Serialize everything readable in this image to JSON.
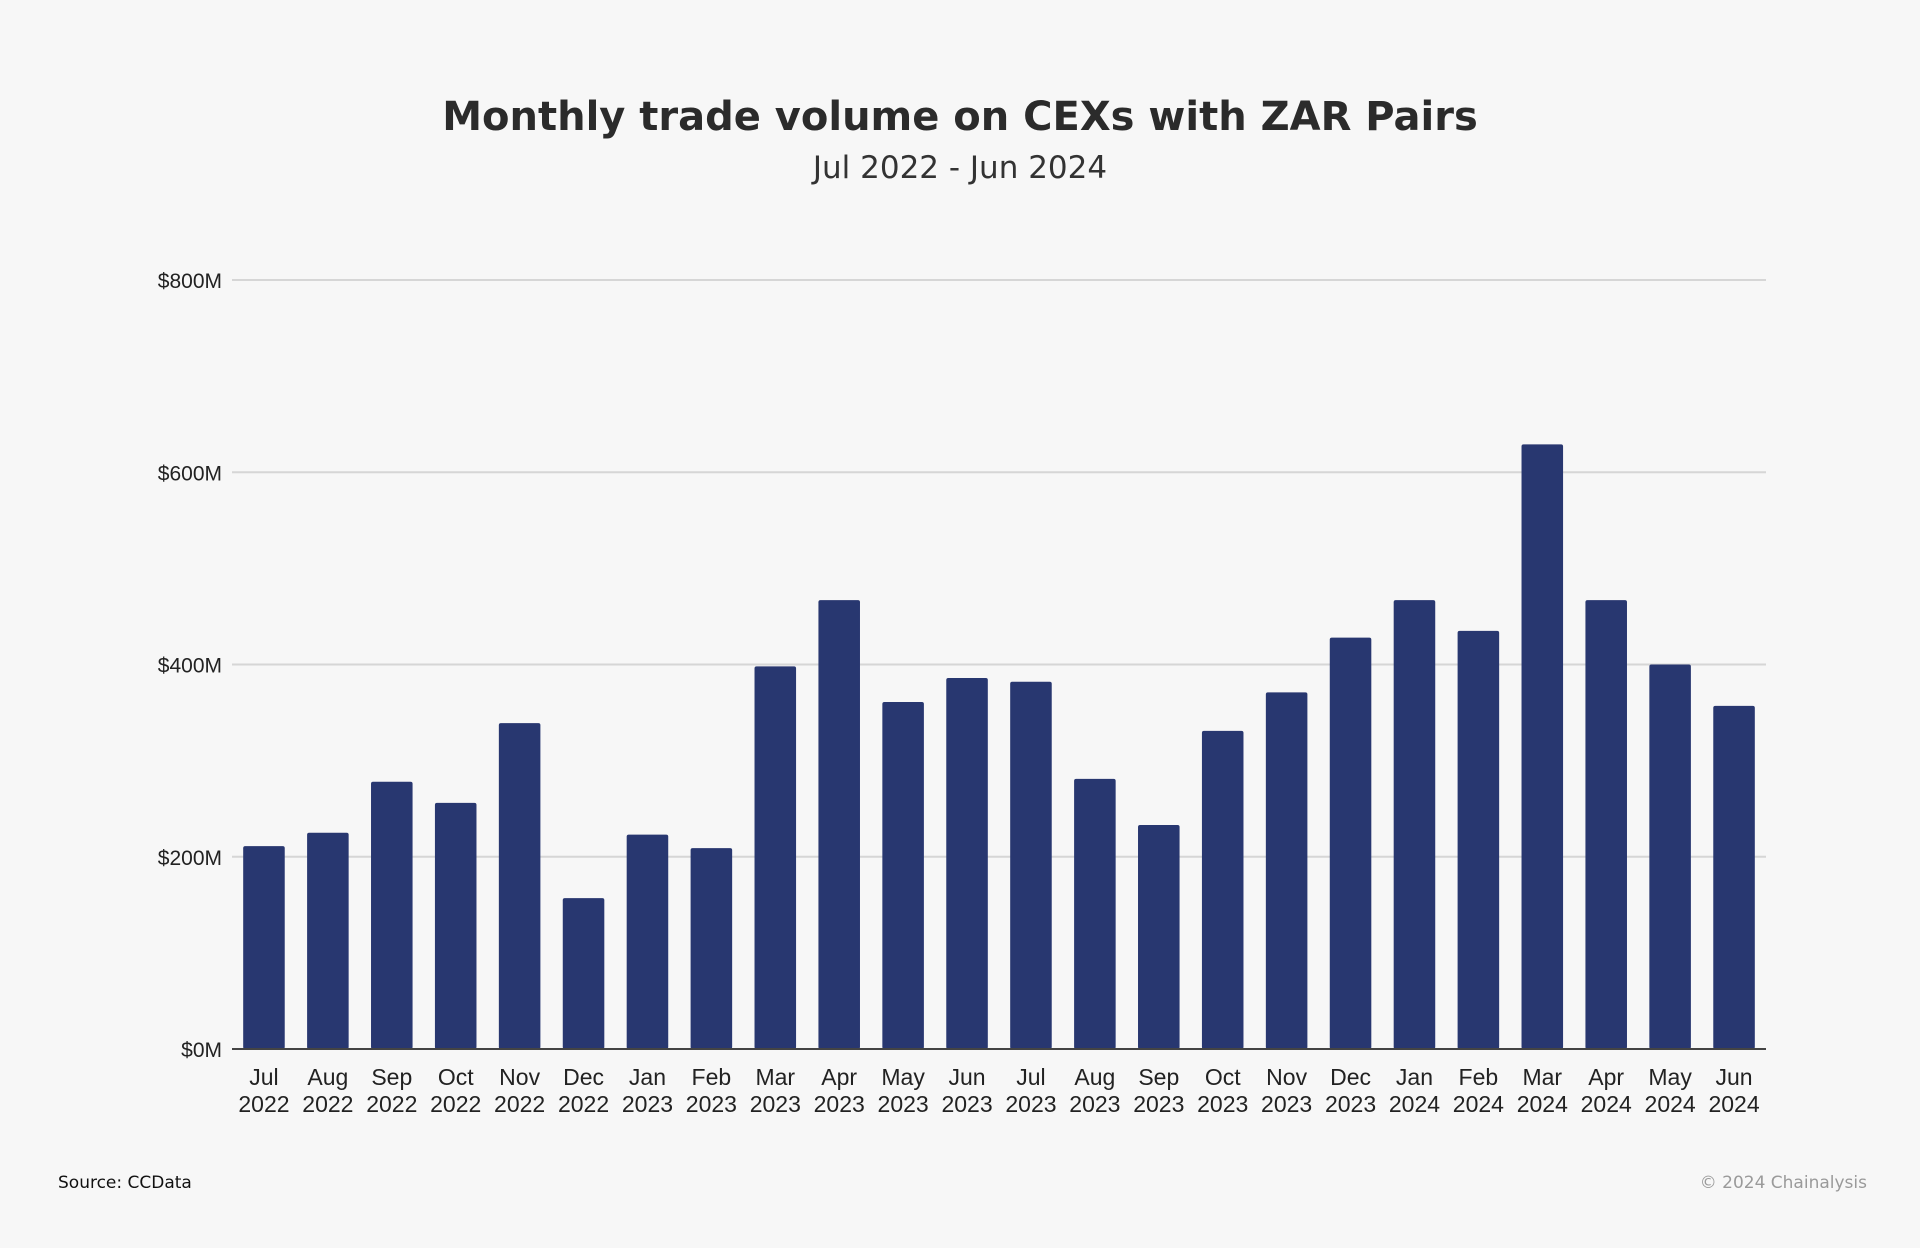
{
  "colors": {
    "background": "#f7f7f7",
    "bar": "#283770",
    "grid": "#d6d6d6",
    "axis": "#444444",
    "text": "#222222"
  },
  "footer": {
    "source": "Source: CCData",
    "copyright": "© 2024 Chainalysis"
  },
  "chart_data": {
    "type": "bar",
    "title": "Monthly trade volume on CEXs with ZAR Pairs",
    "subtitle": "Jul 2022 - Jun 2024",
    "xlabel": "",
    "ylabel": "",
    "ylim": [
      0,
      800
    ],
    "y_unit": "$M",
    "y_ticks": [
      0,
      200,
      400,
      600,
      800
    ],
    "y_tick_labels": [
      "$0M",
      "$200M",
      "$400M",
      "$600M",
      "$800M"
    ],
    "grid": true,
    "legend": "none",
    "categories": [
      [
        "Jul",
        "2022"
      ],
      [
        "Aug",
        "2022"
      ],
      [
        "Sep",
        "2022"
      ],
      [
        "Oct",
        "2022"
      ],
      [
        "Nov",
        "2022"
      ],
      [
        "Dec",
        "2022"
      ],
      [
        "Jan",
        "2023"
      ],
      [
        "Feb",
        "2023"
      ],
      [
        "Mar",
        "2023"
      ],
      [
        "Apr",
        "2023"
      ],
      [
        "May",
        "2023"
      ],
      [
        "Jun",
        "2023"
      ],
      [
        "Jul",
        "2023"
      ],
      [
        "Aug",
        "2023"
      ],
      [
        "Sep",
        "2023"
      ],
      [
        "Oct",
        "2023"
      ],
      [
        "Nov",
        "2023"
      ],
      [
        "Dec",
        "2023"
      ],
      [
        "Jan",
        "2024"
      ],
      [
        "Feb",
        "2024"
      ],
      [
        "Mar",
        "2024"
      ],
      [
        "Apr",
        "2024"
      ],
      [
        "May",
        "2024"
      ],
      [
        "Jun",
        "2024"
      ]
    ],
    "values": [
      211,
      225,
      278,
      256,
      339,
      157,
      223,
      209,
      398,
      467,
      361,
      386,
      382,
      281,
      233,
      331,
      371,
      428,
      467,
      435,
      629,
      467,
      400,
      357
    ]
  }
}
